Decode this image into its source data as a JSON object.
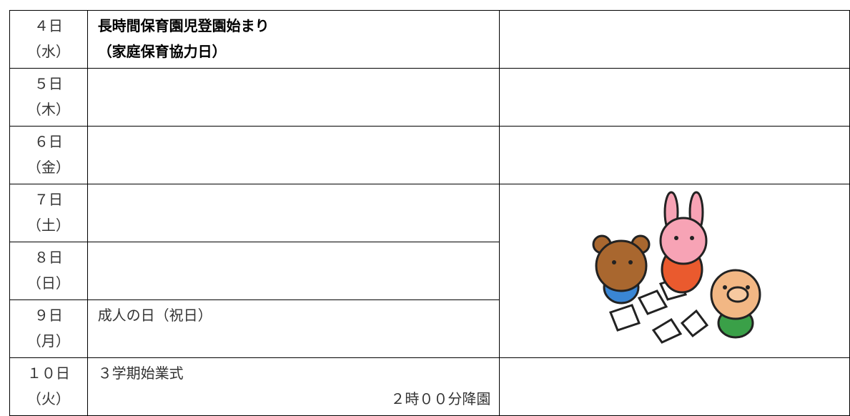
{
  "rows": [
    {
      "date": "４日",
      "weekday": "（水）",
      "lines": [
        "長時間保育園児登園始まり",
        "（家庭保育協力日）"
      ]
    },
    {
      "date": "５日",
      "weekday": "（木）"
    },
    {
      "date": "６日",
      "weekday": "（金）"
    },
    {
      "date": "７日",
      "weekday": "（土）"
    },
    {
      "date": "８日",
      "weekday": "（日）"
    },
    {
      "date": "９日",
      "weekday": "（月）",
      "lines": [
        "成人の日（祝日）"
      ]
    },
    {
      "date": "１０日",
      "weekday": "（火）",
      "lines": [
        "３学期始業式",
        "２時００分降園"
      ]
    }
  ]
}
